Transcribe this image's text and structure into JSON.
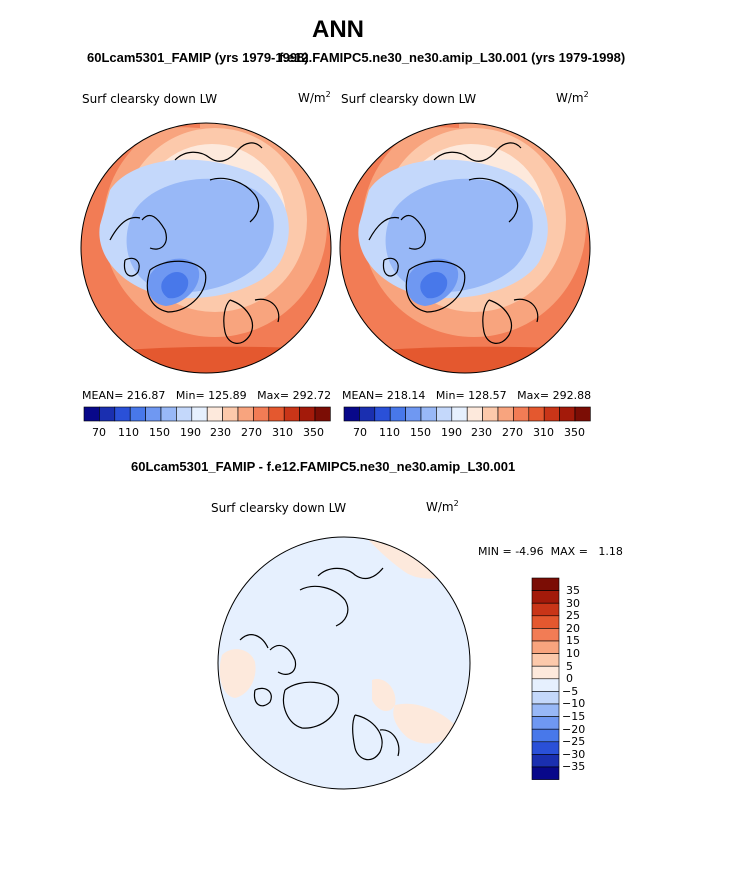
{
  "figure": {
    "title": "ANN",
    "subtitle_left": "60Lcam5301_FAMIP (yrs 1979-1998)",
    "subtitle_right": "f.e12.FAMIPC5.ne30_ne30.amip_L30.001 (yrs 1979-1998)",
    "diff_title": "60Lcam5301_FAMIP - f.e12.FAMIPC5.ne30_ne30.amip_L30.001"
  },
  "chart_data": [
    {
      "type": "heatmap",
      "projection": "polar stereographic (north pole)",
      "variable": "Surf clearsky down LW",
      "units_base": "W/m",
      "units_exp": "2",
      "stats": {
        "mean_label": "MEAN=",
        "mean": "216.87",
        "min_label": "Min=",
        "min": "125.89",
        "max_label": "Max=",
        "max": "292.72"
      },
      "colorbar_labels": [
        "70",
        "110",
        "150",
        "190",
        "230",
        "270",
        "310",
        "350"
      ]
    },
    {
      "type": "heatmap",
      "projection": "polar stereographic (north pole)",
      "variable": "Surf clearsky down LW",
      "units_base": "W/m",
      "units_exp": "2",
      "stats": {
        "mean_label": "MEAN=",
        "mean": "218.14",
        "min_label": "Min=",
        "min": "128.57",
        "max_label": "Max=",
        "max": "292.88"
      },
      "colorbar_labels": [
        "70",
        "110",
        "150",
        "190",
        "230",
        "270",
        "310",
        "350"
      ]
    },
    {
      "type": "heatmap",
      "projection": "polar stereographic (north pole)",
      "variable": "Surf clearsky down LW",
      "units_base": "W/m",
      "units_exp": "2",
      "stats": {
        "min_label": "MIN =",
        "min": "-4.96",
        "max_label": "MAX =",
        "max": "1.18"
      },
      "colorbar_labels": [
        "35",
        "30",
        "25",
        "20",
        "15",
        "10",
        "5",
        "0",
        "−5",
        "−10",
        "−15",
        "−20",
        "−25",
        "−30",
        "−35"
      ]
    }
  ],
  "colors": {
    "abs_scale": [
      "#08088a",
      "#1a2fb0",
      "#2a50d8",
      "#4878ea",
      "#6f98f2",
      "#98b8f7",
      "#c4d8fb",
      "#e6f0fe",
      "#fde9dc",
      "#fcc9ab",
      "#f8a47e",
      "#f27c55",
      "#e4582f",
      "#c93518",
      "#a31a0a",
      "#7b0d05"
    ],
    "diff_scale": [
      "#7b0d05",
      "#a31a0a",
      "#c93518",
      "#e4582f",
      "#f27c55",
      "#f8a47e",
      "#fcc9ab",
      "#fde9dc",
      "#e6f0fe",
      "#c4d8fb",
      "#98b8f7",
      "#6f98f2",
      "#4878ea",
      "#2a50d8",
      "#1a2fb0",
      "#08088a"
    ]
  }
}
